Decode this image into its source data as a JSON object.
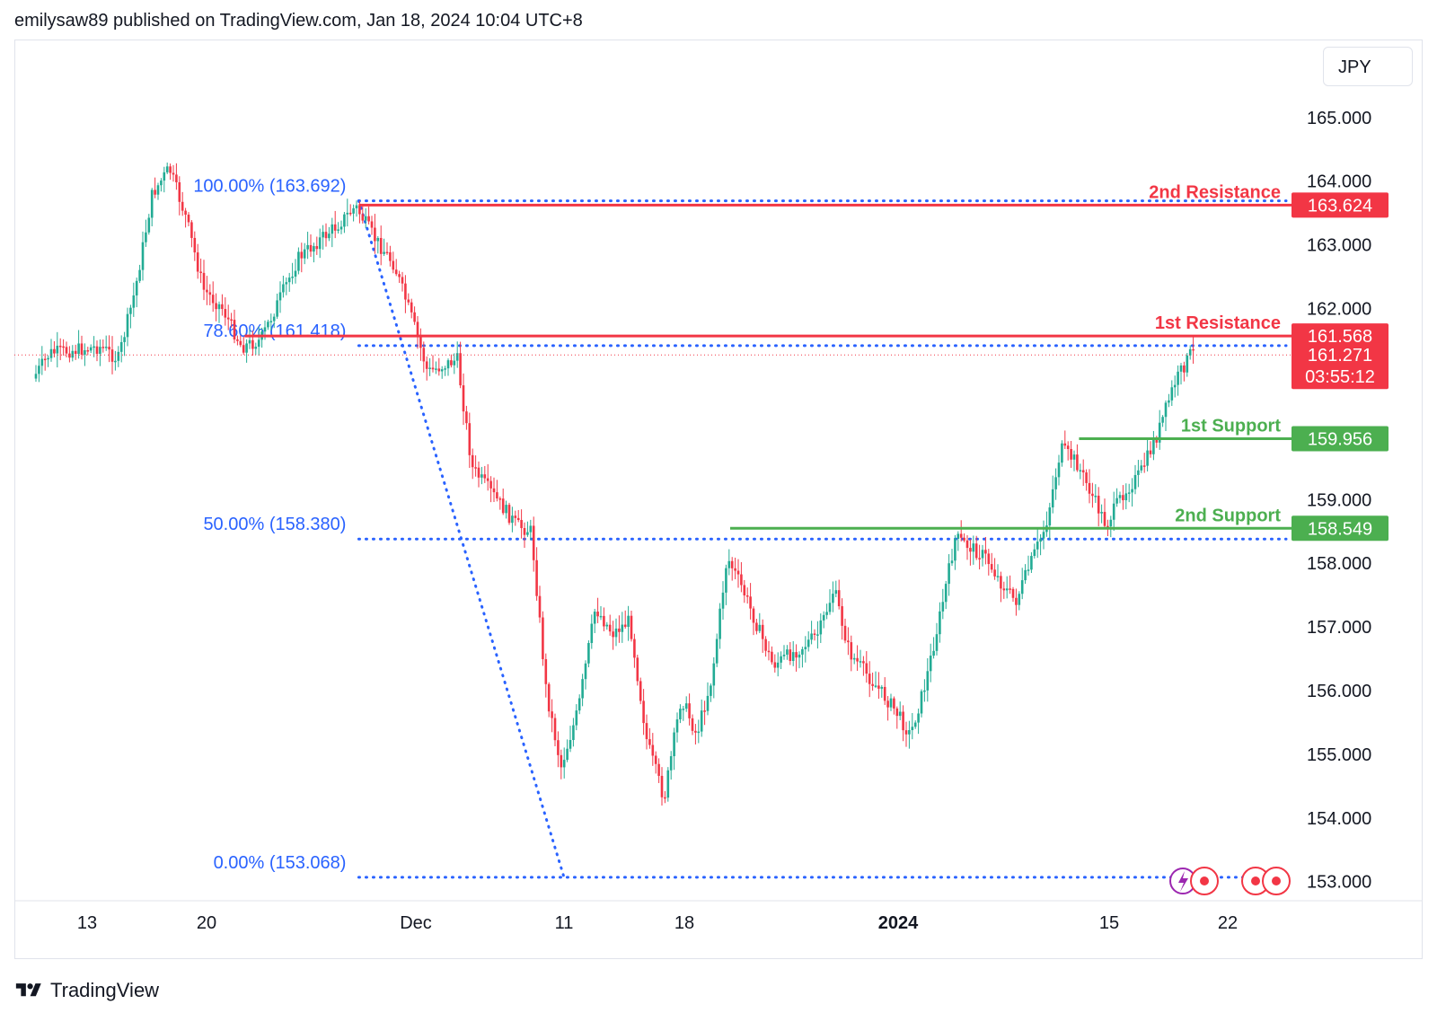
{
  "header": {
    "attribution": "emilysaw89 published on TradingView.com, Jan 18, 2024 10:04 UTC+8"
  },
  "currency": "JPY",
  "footer": {
    "brand": "TradingView",
    "icon": "tradingview-logo-icon"
  },
  "colors": {
    "up": "#22ab94",
    "down": "#f23645",
    "fib": "#2962ff",
    "resistance": "#f23645",
    "support": "#4caf50",
    "axis_text": "#131722",
    "fib_text": "#2962ff"
  },
  "chart_data": {
    "type": "candlestick",
    "symbol_currency": "JPY",
    "y_axis": {
      "min": 152.7,
      "max": 165.9,
      "ticks": [
        165,
        164,
        163,
        162,
        161,
        160,
        159,
        158,
        157,
        156,
        155,
        154,
        153
      ],
      "tick_labels": [
        "165.000",
        "164.000",
        "163.000",
        "162.000",
        "",
        "",
        "159.000",
        "158.000",
        "157.000",
        "156.000",
        "155.000",
        "154.000",
        "153.000"
      ]
    },
    "x_axis": {
      "labels": [
        {
          "text": "13",
          "bold": false
        },
        {
          "text": "20",
          "bold": false
        },
        {
          "text": "Dec",
          "bold": false
        },
        {
          "text": "11",
          "bold": false
        },
        {
          "text": "18",
          "bold": false
        },
        {
          "text": "2024",
          "bold": true
        },
        {
          "text": "15",
          "bold": false
        },
        {
          "text": "22",
          "bold": false
        }
      ]
    },
    "anchors": [
      {
        "label": "13",
        "date": "2023-11-13"
      },
      {
        "label": "20",
        "date": "2023-11-20"
      },
      {
        "label": "Dec",
        "date": "2023-12-01"
      },
      {
        "label": "11",
        "date": "2023-12-11"
      },
      {
        "label": "18",
        "date": "2023-12-18"
      },
      {
        "label": "2024",
        "date": "2024-01-01"
      },
      {
        "label": "15",
        "date": "2024-01-15"
      },
      {
        "label": "22",
        "date": "2024-01-22"
      }
    ],
    "candle_path": [
      {
        "date": "2023-11-10",
        "price": 160.9
      },
      {
        "date": "2023-11-11",
        "price": 161.3
      },
      {
        "date": "2023-11-14",
        "price": 161.4
      },
      {
        "date": "2023-11-15",
        "price": 161.2
      },
      {
        "date": "2023-11-16",
        "price": 162.3
      },
      {
        "date": "2023-11-17",
        "price": 163.8
      },
      {
        "date": "2023-11-18",
        "price": 164.2
      },
      {
        "date": "2023-11-19",
        "price": 163.4
      },
      {
        "date": "2023-11-20",
        "price": 162.3
      },
      {
        "date": "2023-11-21",
        "price": 162.0
      },
      {
        "date": "2023-11-22",
        "price": 161.4
      },
      {
        "date": "2023-11-23",
        "price": 161.5
      },
      {
        "date": "2023-11-25",
        "price": 162.8
      },
      {
        "date": "2023-11-27",
        "price": 163.3
      },
      {
        "date": "2023-11-28",
        "price": 163.6
      },
      {
        "date": "2023-11-29",
        "price": 163.1
      },
      {
        "date": "2023-11-30",
        "price": 162.7
      },
      {
        "date": "2023-12-01",
        "price": 161.8
      },
      {
        "date": "2023-12-02",
        "price": 161.0
      },
      {
        "date": "2023-12-04",
        "price": 161.2
      },
      {
        "date": "2023-12-05",
        "price": 159.5
      },
      {
        "date": "2023-12-07",
        "price": 158.9
      },
      {
        "date": "2023-12-08",
        "price": 158.6
      },
      {
        "date": "2023-12-09",
        "price": 158.5
      },
      {
        "date": "2023-12-10",
        "price": 156.0
      },
      {
        "date": "2023-12-11",
        "price": 154.8
      },
      {
        "date": "2023-12-12",
        "price": 155.7
      },
      {
        "date": "2023-12-13",
        "price": 157.3
      },
      {
        "date": "2023-12-14",
        "price": 156.9
      },
      {
        "date": "2023-12-15",
        "price": 157.1
      },
      {
        "date": "2023-12-16",
        "price": 155.2
      },
      {
        "date": "2023-12-17",
        "price": 154.3
      },
      {
        "date": "2023-12-18",
        "price": 155.9
      },
      {
        "date": "2023-12-19",
        "price": 155.3
      },
      {
        "date": "2023-12-20",
        "price": 156.2
      },
      {
        "date": "2023-12-21",
        "price": 158.1
      },
      {
        "date": "2023-12-22",
        "price": 157.6
      },
      {
        "date": "2023-12-23",
        "price": 157.0
      },
      {
        "date": "2023-12-24",
        "price": 156.4
      },
      {
        "date": "2023-12-26",
        "price": 156.7
      },
      {
        "date": "2023-12-27",
        "price": 156.9
      },
      {
        "date": "2023-12-28",
        "price": 157.6
      },
      {
        "date": "2023-12-29",
        "price": 156.6
      },
      {
        "date": "2023-12-30",
        "price": 156.3
      },
      {
        "date": "2024-01-01",
        "price": 155.7
      },
      {
        "date": "2024-01-02",
        "price": 155.3
      },
      {
        "date": "2024-01-03",
        "price": 156.1
      },
      {
        "date": "2024-01-04",
        "price": 157.2
      },
      {
        "date": "2024-01-05",
        "price": 158.4
      },
      {
        "date": "2024-01-07",
        "price": 158.1
      },
      {
        "date": "2024-01-08",
        "price": 157.7
      },
      {
        "date": "2024-01-09",
        "price": 157.4
      },
      {
        "date": "2024-01-10",
        "price": 158.0
      },
      {
        "date": "2024-01-11",
        "price": 158.6
      },
      {
        "date": "2024-01-12",
        "price": 159.8
      },
      {
        "date": "2024-01-13",
        "price": 159.6
      },
      {
        "date": "2024-01-14",
        "price": 159.1
      },
      {
        "date": "2024-01-15",
        "price": 158.6
      },
      {
        "date": "2024-01-16",
        "price": 159.1
      },
      {
        "date": "2024-01-17",
        "price": 159.4
      },
      {
        "date": "2024-01-18",
        "price": 160.0
      },
      {
        "date": "2024-01-19",
        "price": 160.8
      },
      {
        "date": "2024-01-20",
        "price": 161.3
      }
    ],
    "fibonacci": {
      "levels": [
        {
          "label": "100.00% (163.692)",
          "price": 163.692
        },
        {
          "label": "78.60% (161.418)",
          "price": 161.418
        },
        {
          "label": "50.00% (158.380)",
          "price": 158.38
        },
        {
          "label": "0.00% (153.068)",
          "price": 153.068
        }
      ],
      "start_date": "2023-11-28",
      "trend_from": {
        "date": "2023-11-28",
        "price": 163.692
      },
      "trend_to": {
        "date": "2023-12-11",
        "price": 153.068
      }
    },
    "horizontal_levels": [
      {
        "label": "2nd Resistance",
        "price": 163.624,
        "price_label": "163.624",
        "kind": "resistance",
        "start_date": "2023-11-28"
      },
      {
        "label": "1st Resistance",
        "price": 161.568,
        "price_label": "161.568",
        "kind": "resistance",
        "start_date": "2023-11-22"
      },
      {
        "label": "1st Support",
        "price": 159.956,
        "price_label": "159.956",
        "kind": "support",
        "start_date": "2024-01-13"
      },
      {
        "label": "2nd Support",
        "price": 158.549,
        "price_label": "158.549",
        "kind": "support",
        "start_date": "2023-12-21"
      }
    ],
    "current_price": {
      "value": 161.271,
      "label": "161.271",
      "countdown": "03:55:12"
    }
  }
}
